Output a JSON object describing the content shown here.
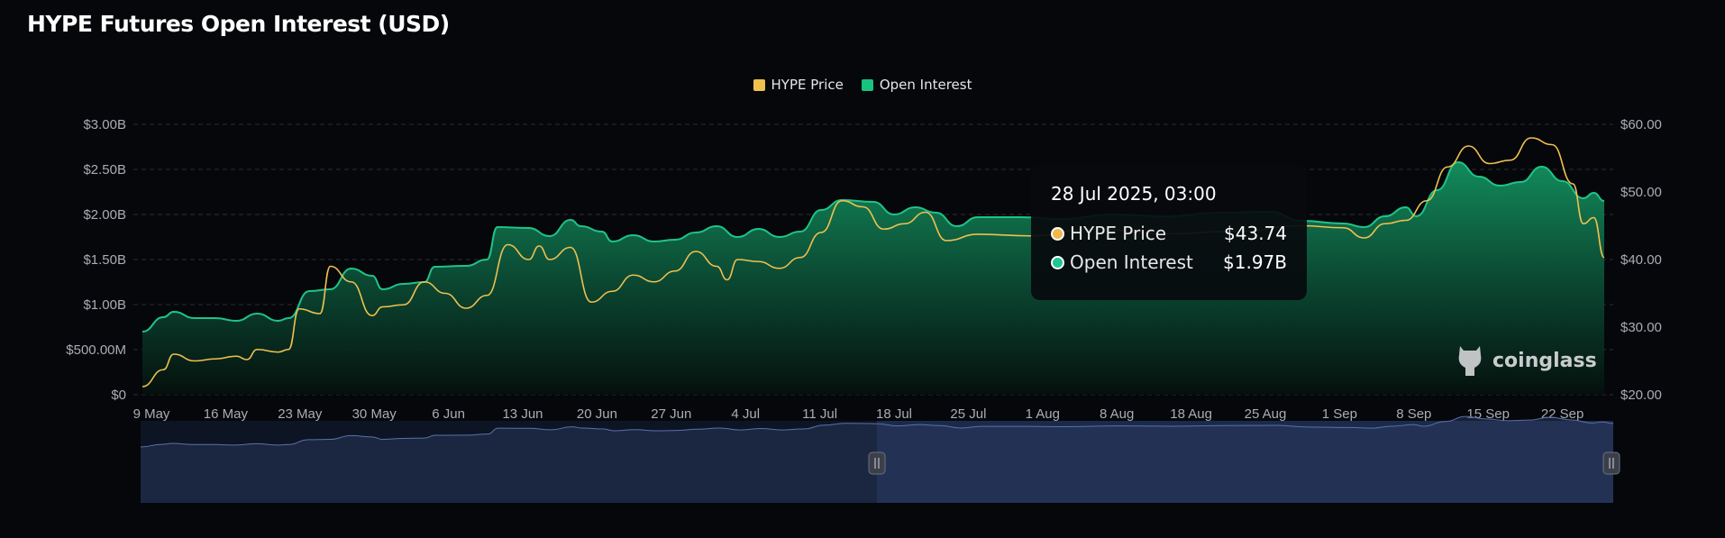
{
  "title": "HYPE Futures Open Interest (USD)",
  "legend": [
    {
      "label": "HYPE Price",
      "color": "#f0c04e"
    },
    {
      "label": "Open Interest",
      "color": "#18c37e"
    }
  ],
  "tooltip": {
    "date": "28 Jul 2025, 03:00",
    "rows": [
      {
        "label": "HYPE Price",
        "value": "$43.74",
        "color": "#f0b94a"
      },
      {
        "label": "Open Interest",
        "value": "$1.97B",
        "color": "#1fc592"
      }
    ]
  },
  "watermark": "coinglass",
  "chart_data": {
    "type": "area",
    "x_ticks": [
      "9 May",
      "16 May",
      "23 May",
      "30 May",
      "6 Jun",
      "13 Jun",
      "20 Jun",
      "27 Jun",
      "4 Jul",
      "11 Jul",
      "18 Jul",
      "25 Jul",
      "1 Aug",
      "8 Aug",
      "18 Aug",
      "25 Aug",
      "1 Sep",
      "8 Sep",
      "15 Sep",
      "22 Sep"
    ],
    "y_left": {
      "ticks": [
        "$0",
        "$500.00M",
        "$1.00B",
        "$1.50B",
        "$2.00B",
        "$2.50B",
        "$3.00B"
      ],
      "range": [
        0,
        3
      ]
    },
    "y_right": {
      "ticks": [
        "$20.00",
        "$30.00",
        "$40.00",
        "$50.00",
        "$60.00"
      ],
      "range": [
        20,
        60
      ]
    },
    "grid": true,
    "legend_position": "top-center",
    "series": [
      {
        "name": "Open Interest",
        "unit": "USD billions",
        "color": "#18c37e",
        "points": [
          [
            "2025-05-09",
            0.7
          ],
          [
            "2025-05-11",
            0.86
          ],
          [
            "2025-05-12",
            0.92
          ],
          [
            "2025-05-14",
            0.85
          ],
          [
            "2025-05-16",
            0.85
          ],
          [
            "2025-05-18",
            0.82
          ],
          [
            "2025-05-20",
            0.9
          ],
          [
            "2025-05-22",
            0.82
          ],
          [
            "2025-05-23",
            0.85
          ],
          [
            "2025-05-25",
            1.15
          ],
          [
            "2025-05-27",
            1.17
          ],
          [
            "2025-05-29",
            1.4
          ],
          [
            "2025-05-31",
            1.32
          ],
          [
            "2025-06-01",
            1.17
          ],
          [
            "2025-06-03",
            1.23
          ],
          [
            "2025-06-05",
            1.25
          ],
          [
            "2025-06-06",
            1.42
          ],
          [
            "2025-06-09",
            1.43
          ],
          [
            "2025-06-11",
            1.5
          ],
          [
            "2025-06-12",
            1.86
          ],
          [
            "2025-06-15",
            1.85
          ],
          [
            "2025-06-17",
            1.76
          ],
          [
            "2025-06-19",
            1.94
          ],
          [
            "2025-06-20",
            1.87
          ],
          [
            "2025-06-22",
            1.81
          ],
          [
            "2025-06-23",
            1.7
          ],
          [
            "2025-06-25",
            1.77
          ],
          [
            "2025-06-27",
            1.7
          ],
          [
            "2025-06-29",
            1.72
          ],
          [
            "2025-07-01",
            1.8
          ],
          [
            "2025-07-03",
            1.87
          ],
          [
            "2025-07-05",
            1.75
          ],
          [
            "2025-07-07",
            1.84
          ],
          [
            "2025-07-09",
            1.75
          ],
          [
            "2025-07-11",
            1.81
          ],
          [
            "2025-07-13",
            2.05
          ],
          [
            "2025-07-15",
            2.16
          ],
          [
            "2025-07-18",
            2.14
          ],
          [
            "2025-07-20",
            2.0
          ],
          [
            "2025-07-22",
            2.08
          ],
          [
            "2025-07-24",
            2.02
          ],
          [
            "2025-07-26",
            1.87
          ],
          [
            "2025-07-28",
            1.97
          ],
          [
            "2025-08-01",
            1.97
          ],
          [
            "2025-08-05",
            1.95
          ],
          [
            "2025-08-10",
            2.0
          ],
          [
            "2025-08-15",
            1.98
          ],
          [
            "2025-08-20",
            2.02
          ],
          [
            "2025-08-25",
            2.03
          ],
          [
            "2025-08-28",
            1.93
          ],
          [
            "2025-09-01",
            1.9
          ],
          [
            "2025-09-03",
            1.86
          ],
          [
            "2025-09-05",
            1.98
          ],
          [
            "2025-09-07",
            2.08
          ],
          [
            "2025-09-08",
            1.98
          ],
          [
            "2025-09-10",
            2.27
          ],
          [
            "2025-09-12",
            2.58
          ],
          [
            "2025-09-14",
            2.42
          ],
          [
            "2025-09-16",
            2.32
          ],
          [
            "2025-09-18",
            2.36
          ],
          [
            "2025-09-20",
            2.53
          ],
          [
            "2025-09-22",
            2.37
          ],
          [
            "2025-09-24",
            2.18
          ],
          [
            "2025-09-25",
            2.24
          ],
          [
            "2025-09-26",
            2.15
          ]
        ]
      },
      {
        "name": "HYPE Price",
        "unit": "USD",
        "color": "#f0c04e",
        "points": [
          [
            "2025-05-09",
            21.2
          ],
          [
            "2025-05-11",
            23.7
          ],
          [
            "2025-05-12",
            26.0
          ],
          [
            "2025-05-14",
            25.0
          ],
          [
            "2025-05-16",
            25.3
          ],
          [
            "2025-05-18",
            25.7
          ],
          [
            "2025-05-19",
            25.2
          ],
          [
            "2025-05-20",
            26.7
          ],
          [
            "2025-05-22",
            26.3
          ],
          [
            "2025-05-23",
            26.7
          ],
          [
            "2025-05-24",
            32.7
          ],
          [
            "2025-05-26",
            32.0
          ],
          [
            "2025-05-27",
            39.0
          ],
          [
            "2025-05-29",
            36.7
          ],
          [
            "2025-05-31",
            31.7
          ],
          [
            "2025-06-01",
            33.0
          ],
          [
            "2025-06-03",
            33.3
          ],
          [
            "2025-06-05",
            36.7
          ],
          [
            "2025-06-07",
            35.0
          ],
          [
            "2025-06-09",
            32.8
          ],
          [
            "2025-06-11",
            34.7
          ],
          [
            "2025-06-13",
            42.2
          ],
          [
            "2025-06-15",
            40.0
          ],
          [
            "2025-06-16",
            42.0
          ],
          [
            "2025-06-17",
            40.0
          ],
          [
            "2025-06-19",
            41.8
          ],
          [
            "2025-06-21",
            33.7
          ],
          [
            "2025-06-23",
            35.3
          ],
          [
            "2025-06-25",
            37.7
          ],
          [
            "2025-06-27",
            36.7
          ],
          [
            "2025-06-29",
            38.3
          ],
          [
            "2025-07-01",
            41.2
          ],
          [
            "2025-07-03",
            39.0
          ],
          [
            "2025-07-04",
            37.0
          ],
          [
            "2025-07-05",
            40.0
          ],
          [
            "2025-07-07",
            39.7
          ],
          [
            "2025-07-09",
            38.7
          ],
          [
            "2025-07-11",
            40.3
          ],
          [
            "2025-07-13",
            44.0
          ],
          [
            "2025-07-15",
            48.7
          ],
          [
            "2025-07-17",
            47.8
          ],
          [
            "2025-07-19",
            44.5
          ],
          [
            "2025-07-21",
            45.3
          ],
          [
            "2025-07-23",
            47.0
          ],
          [
            "2025-07-25",
            42.8
          ],
          [
            "2025-07-28",
            43.74
          ],
          [
            "2025-08-02",
            43.5
          ],
          [
            "2025-08-08",
            44.5
          ],
          [
            "2025-08-15",
            43.8
          ],
          [
            "2025-08-22",
            44.2
          ],
          [
            "2025-08-28",
            45.0
          ],
          [
            "2025-09-01",
            44.7
          ],
          [
            "2025-09-03",
            43.2
          ],
          [
            "2025-09-05",
            45.3
          ],
          [
            "2025-09-07",
            45.8
          ],
          [
            "2025-09-09",
            48.7
          ],
          [
            "2025-09-11",
            53.7
          ],
          [
            "2025-09-13",
            56.8
          ],
          [
            "2025-09-15",
            54.2
          ],
          [
            "2025-09-17",
            54.7
          ],
          [
            "2025-09-19",
            58.0
          ],
          [
            "2025-09-21",
            57.0
          ],
          [
            "2025-09-23",
            51.2
          ],
          [
            "2025-09-24",
            45.3
          ],
          [
            "2025-09-25",
            46.2
          ],
          [
            "2025-09-26",
            40.3
          ]
        ]
      }
    ]
  }
}
